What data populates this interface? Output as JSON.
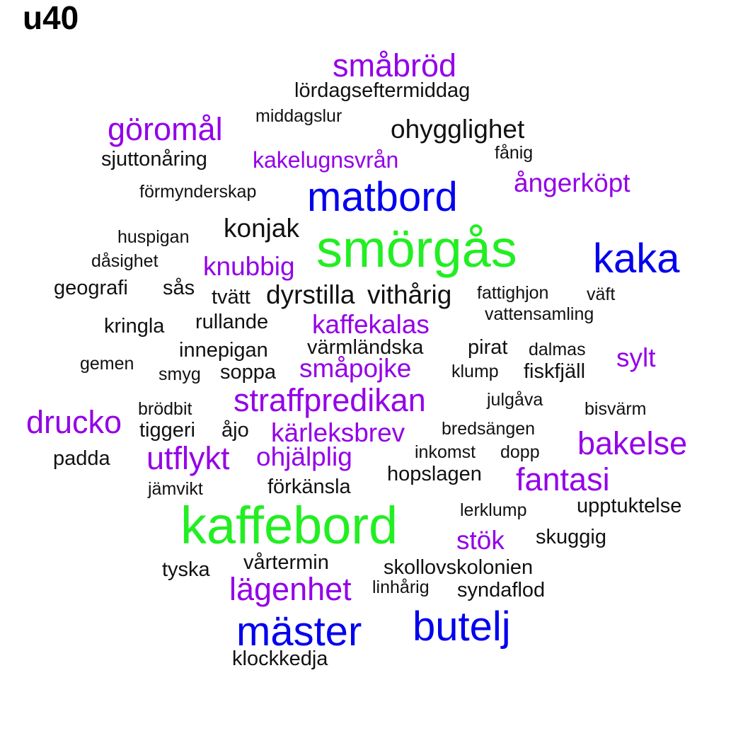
{
  "title": "u40",
  "colors": {
    "green": "#22ee22",
    "blue": "#0000ee",
    "purple": "#9400e8",
    "black": "#111111"
  },
  "words": [
    {
      "text": "smörgås",
      "tier": "green"
    },
    {
      "text": "kaffebord",
      "tier": "green"
    },
    {
      "text": "kaka",
      "tier": "blue"
    },
    {
      "text": "matbord",
      "tier": "blue"
    },
    {
      "text": "mäster",
      "tier": "blue"
    },
    {
      "text": "butelj",
      "tier": "blue"
    },
    {
      "text": "småbröd",
      "tier": "purple"
    },
    {
      "text": "göromål",
      "tier": "purple"
    },
    {
      "text": "kakelugnsvrån",
      "tier": "purple"
    },
    {
      "text": "ångerköpt",
      "tier": "purple"
    },
    {
      "text": "knubbig",
      "tier": "purple"
    },
    {
      "text": "kaffekalas",
      "tier": "purple"
    },
    {
      "text": "småpojke",
      "tier": "purple"
    },
    {
      "text": "sylt",
      "tier": "purple"
    },
    {
      "text": "straffpredikan",
      "tier": "purple"
    },
    {
      "text": "drucko",
      "tier": "purple"
    },
    {
      "text": "kärleksbrev",
      "tier": "purple"
    },
    {
      "text": "bakelse",
      "tier": "purple"
    },
    {
      "text": "utflykt",
      "tier": "purple"
    },
    {
      "text": "ohjälplig",
      "tier": "purple"
    },
    {
      "text": "fantasi",
      "tier": "purple"
    },
    {
      "text": "stök",
      "tier": "purple"
    },
    {
      "text": "lägenhet",
      "tier": "purple"
    },
    {
      "text": "lördagseftermiddag",
      "tier": "black"
    },
    {
      "text": "middagslur",
      "tier": "black"
    },
    {
      "text": "ohygglighet",
      "tier": "black"
    },
    {
      "text": "fånig",
      "tier": "black"
    },
    {
      "text": "sjuttonåring",
      "tier": "black"
    },
    {
      "text": "förmynderskap",
      "tier": "black"
    },
    {
      "text": "konjak",
      "tier": "black"
    },
    {
      "text": "huspigan",
      "tier": "black"
    },
    {
      "text": "dåsighet",
      "tier": "black"
    },
    {
      "text": "geografi",
      "tier": "black"
    },
    {
      "text": "sås",
      "tier": "black"
    },
    {
      "text": "tvätt",
      "tier": "black"
    },
    {
      "text": "dyrstilla",
      "tier": "black"
    },
    {
      "text": "vithårig",
      "tier": "black"
    },
    {
      "text": "fattighjon",
      "tier": "black"
    },
    {
      "text": "väft",
      "tier": "black"
    },
    {
      "text": "vattensamling",
      "tier": "black"
    },
    {
      "text": "kringla",
      "tier": "black"
    },
    {
      "text": "rullande",
      "tier": "black"
    },
    {
      "text": "innepigan",
      "tier": "black"
    },
    {
      "text": "värmländska",
      "tier": "black"
    },
    {
      "text": "pirat",
      "tier": "black"
    },
    {
      "text": "dalmas",
      "tier": "black"
    },
    {
      "text": "gemen",
      "tier": "black"
    },
    {
      "text": "smyg",
      "tier": "black"
    },
    {
      "text": "soppa",
      "tier": "black"
    },
    {
      "text": "klump",
      "tier": "black"
    },
    {
      "text": "fiskfjäll",
      "tier": "black"
    },
    {
      "text": "brödbit",
      "tier": "black"
    },
    {
      "text": "julgåva",
      "tier": "black"
    },
    {
      "text": "bisvärm",
      "tier": "black"
    },
    {
      "text": "tiggeri",
      "tier": "black"
    },
    {
      "text": "åjo",
      "tier": "black"
    },
    {
      "text": "bredsängen",
      "tier": "black"
    },
    {
      "text": "padda",
      "tier": "black"
    },
    {
      "text": "inkomst",
      "tier": "black"
    },
    {
      "text": "dopp",
      "tier": "black"
    },
    {
      "text": "hopslagen",
      "tier": "black"
    },
    {
      "text": "jämvikt",
      "tier": "black"
    },
    {
      "text": "förkänsla",
      "tier": "black"
    },
    {
      "text": "lerklump",
      "tier": "black"
    },
    {
      "text": "upptuktelse",
      "tier": "black"
    },
    {
      "text": "skuggig",
      "tier": "black"
    },
    {
      "text": "tyska",
      "tier": "black"
    },
    {
      "text": "vårtermin",
      "tier": "black"
    },
    {
      "text": "skollovskolonien",
      "tier": "black"
    },
    {
      "text": "linhårig",
      "tier": "black"
    },
    {
      "text": "syndaflod",
      "tier": "black"
    },
    {
      "text": "klockkedja",
      "tier": "black"
    }
  ]
}
